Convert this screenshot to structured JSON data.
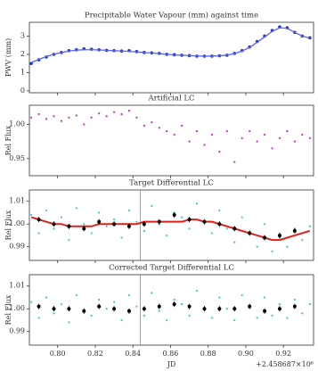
{
  "chart_data": [
    {
      "type": "scatter",
      "title": "Precipitable Water Vapour (mm) against time",
      "y_label": "PWV (mm)",
      "xlim": [
        0.785,
        0.936
      ],
      "ylim": [
        -0.1,
        3.75
      ],
      "yticks": [
        0,
        1,
        2,
        3
      ],
      "x": [
        0.786,
        0.79,
        0.794,
        0.798,
        0.802,
        0.806,
        0.81,
        0.814,
        0.818,
        0.822,
        0.826,
        0.83,
        0.834,
        0.838,
        0.842,
        0.846,
        0.85,
        0.854,
        0.858,
        0.862,
        0.866,
        0.87,
        0.874,
        0.878,
        0.882,
        0.886,
        0.89,
        0.894,
        0.898,
        0.902,
        0.906,
        0.91,
        0.914,
        0.918,
        0.922,
        0.926,
        0.93,
        0.934
      ],
      "series": [
        {
          "color": "#1f2fd6",
          "values": [
            1.5,
            1.7,
            1.85,
            2.0,
            2.1,
            2.2,
            2.25,
            2.3,
            2.28,
            2.25,
            2.22,
            2.2,
            2.18,
            2.2,
            2.15,
            2.1,
            2.08,
            2.05,
            2.0,
            1.98,
            1.95,
            1.93,
            1.9,
            1.9,
            1.9,
            1.92,
            1.95,
            2.05,
            2.2,
            2.4,
            2.7,
            3.0,
            3.3,
            3.5,
            3.45,
            3.2,
            3.0,
            2.9
          ]
        },
        {
          "color": "#5a66e8",
          "style": "line",
          "values": [
            1.55,
            1.72,
            1.88,
            2.0,
            2.1,
            2.18,
            2.23,
            2.25,
            2.25,
            2.24,
            2.22,
            2.2,
            2.18,
            2.16,
            2.13,
            2.1,
            2.07,
            2.04,
            2.0,
            1.97,
            1.95,
            1.93,
            1.91,
            1.9,
            1.9,
            1.92,
            1.96,
            2.04,
            2.18,
            2.38,
            2.65,
            2.95,
            3.25,
            3.45,
            3.42,
            3.2,
            3.0,
            2.88
          ]
        }
      ]
    },
    {
      "type": "scatter",
      "title": "Artificial LC",
      "y_label": "Rel Flux",
      "xlim": [
        0.785,
        0.936
      ],
      "ylim": [
        0.925,
        1.028
      ],
      "yticks": [
        0.95,
        {
          "value": 1,
          "label": "1.00"
        }
      ],
      "x": [
        0.786,
        0.79,
        0.794,
        0.798,
        0.802,
        0.806,
        0.81,
        0.814,
        0.818,
        0.822,
        0.826,
        0.83,
        0.834,
        0.838,
        0.842,
        0.846,
        0.85,
        0.854,
        0.858,
        0.862,
        0.866,
        0.87,
        0.874,
        0.878,
        0.882,
        0.886,
        0.89,
        0.894,
        0.898,
        0.902,
        0.906,
        0.91,
        0.914,
        0.918,
        0.922,
        0.926,
        0.93,
        0.934
      ],
      "series": [
        {
          "color": "#c42fc4",
          "values": [
            1.01,
            1.015,
            1.008,
            1.012,
            1.005,
            1.01,
            1.013,
            1.0,
            1.01,
            1.016,
            1.012,
            1.018,
            1.015,
            1.02,
            1.01,
            0.998,
            1.003,
            0.995,
            0.99,
            0.985,
            0.998,
            0.975,
            0.99,
            0.97,
            0.985,
            0.96,
            0.99,
            0.945,
            0.98,
            0.99,
            0.975,
            0.985,
            0.965,
            0.98,
            0.99,
            0.975,
            0.985,
            0.98
          ]
        }
      ]
    },
    {
      "type": "scatter",
      "title": "Target Differential LC",
      "y_label": "Rel Flux",
      "xlim": [
        0.785,
        0.936
      ],
      "ylim": [
        0.984,
        1.015
      ],
      "yticks": [
        0.99,
        {
          "value": 1,
          "label": "1.00"
        },
        1.01
      ],
      "vline": 0.844,
      "x": [
        0.786,
        0.79,
        0.794,
        0.798,
        0.802,
        0.806,
        0.81,
        0.814,
        0.818,
        0.822,
        0.826,
        0.83,
        0.834,
        0.838,
        0.842,
        0.846,
        0.85,
        0.854,
        0.858,
        0.862,
        0.866,
        0.87,
        0.874,
        0.878,
        0.882,
        0.886,
        0.89,
        0.894,
        0.898,
        0.902,
        0.906,
        0.91,
        0.914,
        0.918,
        0.922,
        0.926,
        0.93,
        0.934
      ],
      "series": [
        {
          "color": "#3cc8c8",
          "values": [
            1.004,
            0.996,
            1.006,
            0.998,
            1.003,
            0.993,
            1.007,
            1.0,
            0.996,
            1.005,
            0.999,
            1.002,
            0.994,
            1.006,
            1.001,
            0.997,
            1.008,
            1.0,
            0.995,
            1.005,
            1.003,
            0.998,
            1.009,
            1.001,
            0.996,
            1.006,
            0.998,
            0.992,
            1.003,
            0.996,
            0.99,
            1.0,
            0.988,
            0.994,
            0.99,
            0.998,
            0.993,
            0.999
          ]
        },
        {
          "color": "#e0201a",
          "style": "line",
          "values": [
            1.003,
            1.002,
            1.001,
            1.0,
            1.0,
            0.999,
            0.999,
            0.999,
            0.999,
            1.0,
            1.0,
            1.0,
            1.0,
            1.0,
            1.0,
            1.001,
            1.001,
            1.001,
            1.001,
            1.001,
            1.001,
            1.002,
            1.002,
            1.001,
            1.001,
            1.0,
            0.999,
            0.998,
            0.997,
            0.996,
            0.995,
            0.994,
            0.993,
            0.993,
            0.994,
            0.995,
            0.996,
            0.997
          ]
        },
        {
          "color": "#000000",
          "x": [
            0.79,
            0.798,
            0.806,
            0.814,
            0.822,
            0.83,
            0.838,
            0.846,
            0.854,
            0.862,
            0.87,
            0.878,
            0.886,
            0.894,
            0.902,
            0.91,
            0.918,
            0.926
          ],
          "values": [
            1.002,
            1.0,
            0.999,
            0.998,
            1.001,
            1.0,
            0.999,
            1.0,
            1.001,
            1.004,
            1.002,
            1.001,
            1.0,
            0.998,
            0.996,
            0.994,
            0.995,
            0.997
          ],
          "errors": [
            0.0012,
            0.0012,
            0.0012,
            0.0012,
            0.0012,
            0.0012,
            0.0012,
            0.0012,
            0.0012,
            0.0012,
            0.0012,
            0.0012,
            0.0012,
            0.0012,
            0.0012,
            0.0012,
            0.0012,
            0.0012
          ]
        }
      ]
    },
    {
      "type": "scatter",
      "title": "Corrected Target Differential LC",
      "y_label": "Rel Flux",
      "x_label": "JD",
      "x_offset_label": "+2.458687×10⁶",
      "xlim": [
        0.785,
        0.936
      ],
      "ylim": [
        0.984,
        1.015
      ],
      "yticks": [
        0.99,
        {
          "value": 1,
          "label": "1.00"
        },
        1.01
      ],
      "vline": 0.844,
      "xticks": [
        {
          "value": 0.8,
          "label": "0.80"
        },
        0.82,
        0.84,
        0.86,
        0.88,
        {
          "value": 0.9,
          "label": "0.90"
        },
        0.92
      ],
      "x": [
        0.786,
        0.79,
        0.794,
        0.798,
        0.802,
        0.806,
        0.81,
        0.814,
        0.818,
        0.822,
        0.826,
        0.83,
        0.834,
        0.838,
        0.842,
        0.846,
        0.85,
        0.854,
        0.858,
        0.862,
        0.866,
        0.87,
        0.874,
        0.878,
        0.882,
        0.886,
        0.89,
        0.894,
        0.898,
        0.902,
        0.906,
        0.91,
        0.914,
        0.918,
        0.922,
        0.926,
        0.93,
        0.934
      ],
      "series": [
        {
          "color": "#3cc8c8",
          "values": [
            1.003,
            0.996,
            1.005,
            0.998,
            1.002,
            0.994,
            1.006,
            0.999,
            0.997,
            1.004,
            1.0,
            1.003,
            0.995,
            1.006,
            1.001,
            0.997,
            1.007,
            0.999,
            0.995,
            1.004,
            1.002,
            0.997,
            1.008,
            1.0,
            0.996,
            1.005,
            1.0,
            0.995,
            1.006,
            1.001,
            0.996,
            1.005,
            0.997,
            1.002,
            0.996,
            1.004,
            0.998,
            1.002
          ]
        },
        {
          "color": "#000000",
          "x": [
            0.79,
            0.798,
            0.806,
            0.814,
            0.822,
            0.83,
            0.838,
            0.846,
            0.854,
            0.862,
            0.87,
            0.878,
            0.886,
            0.894,
            0.902,
            0.91,
            0.918,
            0.926
          ],
          "values": [
            1.001,
            1.0,
            1.0,
            0.999,
            1.001,
            1.0,
            0.999,
            1.0,
            1.001,
            1.002,
            1.001,
            1.0,
            1.0,
            1.0,
            1.001,
            0.999,
            1.0,
            1.001
          ],
          "errors": [
            0.0012,
            0.0012,
            0.0012,
            0.0012,
            0.0012,
            0.0012,
            0.0012,
            0.0012,
            0.0012,
            0.0012,
            0.0012,
            0.0012,
            0.0012,
            0.0012,
            0.0012,
            0.0012,
            0.0012,
            0.0012
          ]
        }
      ]
    }
  ]
}
